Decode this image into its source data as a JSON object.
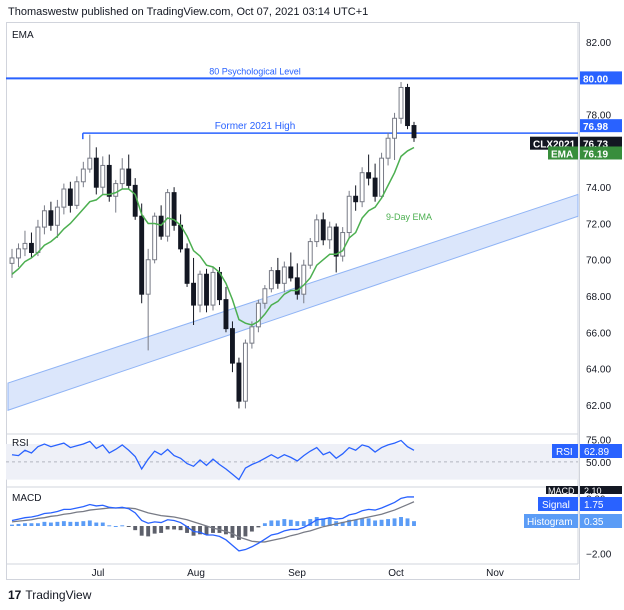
{
  "header": {
    "publisher_line": "Thomaswestw published on TradingView.com, Oct 07, 2021 03:14 UTC+1"
  },
  "footer": {
    "brand": "TradingView",
    "logo_glyph": "17"
  },
  "colors": {
    "up": "#787b86",
    "down": "#131722",
    "ema": "#4caf50",
    "level": "#2962ff",
    "channel_fill": "#dbe6fb",
    "channel_stroke": "#90b4f5",
    "rsi": "#2962ff",
    "macd": "#2962ff",
    "signal": "#787b86",
    "hist_pos": "#5b9cf6",
    "hist_neg": "#5d606b",
    "ticker_bg": "#131722",
    "ema_badge": "#388e3c",
    "level_badge": "#2962ff"
  },
  "chart_data": [
    {
      "type": "candlestick",
      "title": "EMA",
      "symbol": "CLX2021",
      "x_tick_labels": [
        "Jul",
        "Aug",
        "Sep",
        "Oct",
        "Nov"
      ],
      "y_ticks": [
        62.0,
        64.0,
        66.0,
        68.0,
        70.0,
        72.0,
        74.0,
        76.0,
        78.0,
        80.0,
        82.0
      ],
      "ylim": [
        60.5,
        83.0
      ],
      "annotations": [
        {
          "text": "80 Psychological Level",
          "value": 80.0
        },
        {
          "text": "Former 2021 High",
          "value": 76.98
        },
        {
          "text": "9-Day EMA"
        }
      ],
      "price_labels": [
        {
          "text": "80.00",
          "value": 80.0,
          "kind": "level"
        },
        {
          "text": "76.98",
          "value": 76.98,
          "kind": "level"
        },
        {
          "text": "CLX2021",
          "value": 76.73,
          "kind": "ticker"
        },
        {
          "text": "76.73",
          "value": 76.73,
          "kind": "ticker"
        },
        {
          "text": "EMA",
          "value": 76.19,
          "kind": "ema"
        },
        {
          "text": "76.19",
          "value": 76.19,
          "kind": "ema"
        }
      ],
      "channel": {
        "upper_start": 63.2,
        "upper_end": 73.6,
        "lower_start": 61.7,
        "lower_end": 72.4
      },
      "candles": [
        [
          69.8,
          70.6,
          69.0,
          70.1
        ],
        [
          70.1,
          70.9,
          69.6,
          70.6
        ],
        [
          70.6,
          71.6,
          70.2,
          70.9
        ],
        [
          70.9,
          71.5,
          70.1,
          70.4
        ],
        [
          70.4,
          72.2,
          70.2,
          71.8
        ],
        [
          71.8,
          73.0,
          71.4,
          72.7
        ],
        [
          72.7,
          73.2,
          71.6,
          71.9
        ],
        [
          71.9,
          73.3,
          71.2,
          72.9
        ],
        [
          72.9,
          74.2,
          72.5,
          73.9
        ],
        [
          73.9,
          74.3,
          72.6,
          73.0
        ],
        [
          73.0,
          74.6,
          72.8,
          74.3
        ],
        [
          74.3,
          75.4,
          74.0,
          75.0
        ],
        [
          75.0,
          76.9,
          74.8,
          75.6
        ],
        [
          75.6,
          76.2,
          73.6,
          74.0
        ],
        [
          74.0,
          75.7,
          73.6,
          75.2
        ],
        [
          75.2,
          75.8,
          73.2,
          73.5
        ],
        [
          73.5,
          74.4,
          72.6,
          74.2
        ],
        [
          74.2,
          75.6,
          73.9,
          75.0
        ],
        [
          75.0,
          75.8,
          73.9,
          74.1
        ],
        [
          74.1,
          74.5,
          72.2,
          72.4
        ],
        [
          72.4,
          73.1,
          67.6,
          68.1
        ],
        [
          68.1,
          70.6,
          65.0,
          70.0
        ],
        [
          70.0,
          72.6,
          69.8,
          72.4
        ],
        [
          72.4,
          73.0,
          71.1,
          71.3
        ],
        [
          71.3,
          73.9,
          71.0,
          73.7
        ],
        [
          73.7,
          74.0,
          71.6,
          71.9
        ],
        [
          71.9,
          72.5,
          70.4,
          70.6
        ],
        [
          70.6,
          70.9,
          68.5,
          68.7
        ],
        [
          68.7,
          70.1,
          66.4,
          67.5
        ],
        [
          67.5,
          69.4,
          67.1,
          69.2
        ],
        [
          69.2,
          69.5,
          67.1,
          67.5
        ],
        [
          67.5,
          69.6,
          67.2,
          69.3
        ],
        [
          69.3,
          69.6,
          67.5,
          67.8
        ],
        [
          67.8,
          68.5,
          66.0,
          66.2
        ],
        [
          66.2,
          66.6,
          63.8,
          64.3
        ],
        [
          64.3,
          64.6,
          61.8,
          62.2
        ],
        [
          62.2,
          65.6,
          61.8,
          65.4
        ],
        [
          65.4,
          66.6,
          65.1,
          66.3
        ],
        [
          66.3,
          67.8,
          66.0,
          67.6
        ],
        [
          67.6,
          68.6,
          67.3,
          68.4
        ],
        [
          68.4,
          69.6,
          68.2,
          69.4
        ],
        [
          69.4,
          70.1,
          68.4,
          68.7
        ],
        [
          68.7,
          69.9,
          68.2,
          69.6
        ],
        [
          69.6,
          70.4,
          68.8,
          69.0
        ],
        [
          69.0,
          69.8,
          67.8,
          68.1
        ],
        [
          68.1,
          70.0,
          67.6,
          69.7
        ],
        [
          69.7,
          71.2,
          69.5,
          71.0
        ],
        [
          71.0,
          72.5,
          70.7,
          72.2
        ],
        [
          72.2,
          72.6,
          70.8,
          71.1
        ],
        [
          71.1,
          72.1,
          70.6,
          71.8
        ],
        [
          71.8,
          72.0,
          69.3,
          70.2
        ],
        [
          70.2,
          71.8,
          69.9,
          71.5
        ],
        [
          71.5,
          73.8,
          71.2,
          73.5
        ],
        [
          73.5,
          74.1,
          72.7,
          73.2
        ],
        [
          73.2,
          75.1,
          72.9,
          74.8
        ],
        [
          74.8,
          75.8,
          74.1,
          74.5
        ],
        [
          74.5,
          75.3,
          73.2,
          73.5
        ],
        [
          73.5,
          75.9,
          73.4,
          75.6
        ],
        [
          75.6,
          77.0,
          75.2,
          76.7
        ],
        [
          76.7,
          78.1,
          75.5,
          77.8
        ],
        [
          77.8,
          79.8,
          77.5,
          79.5
        ],
        [
          79.5,
          79.7,
          77.2,
          77.4
        ],
        [
          77.4,
          77.6,
          76.5,
          76.73
        ]
      ],
      "ema9": [
        69.2,
        69.5,
        69.9,
        70.1,
        70.4,
        70.8,
        71.0,
        71.3,
        71.7,
        72.0,
        72.4,
        72.8,
        73.2,
        73.3,
        73.6,
        73.6,
        73.7,
        73.9,
        73.9,
        73.6,
        72.5,
        72.0,
        72.0,
        71.9,
        72.3,
        72.2,
        71.9,
        71.3,
        70.5,
        70.2,
        69.7,
        69.6,
        69.3,
        68.7,
        67.8,
        66.7,
        66.5,
        66.4,
        66.6,
        67.0,
        67.5,
        67.7,
        68.1,
        68.3,
        68.3,
        68.6,
        69.0,
        69.7,
        70.0,
        70.3,
        70.3,
        70.5,
        71.2,
        71.5,
        72.3,
        72.7,
        72.9,
        73.4,
        74.1,
        74.8,
        75.7,
        76.0,
        76.19
      ],
      "ema_label_value": 76.19
    },
    {
      "type": "line",
      "title": "RSI",
      "y_ticks": [
        50.0,
        75.0
      ],
      "ylim": [
        24,
        79
      ],
      "band": [
        30,
        70
      ],
      "badge": {
        "label": "RSI",
        "value": "62.89"
      },
      "values": [
        58,
        57,
        63,
        60,
        67,
        70,
        67,
        69,
        71,
        66,
        68,
        70,
        73,
        65,
        69,
        60,
        64,
        69,
        63,
        56,
        42,
        53,
        62,
        58,
        64,
        57,
        54,
        48,
        45,
        52,
        46,
        53,
        47,
        42,
        36,
        30,
        43,
        47,
        50,
        54,
        58,
        54,
        58,
        55,
        51,
        57,
        62,
        66,
        58,
        61,
        54,
        59,
        66,
        63,
        69,
        67,
        61,
        66,
        69,
        71,
        74,
        67,
        62.89
      ]
    },
    {
      "type": "bar+line",
      "title": "MACD",
      "y_ticks": [
        -2.0,
        2.0
      ],
      "ylim": [
        -2.6,
        2.6
      ],
      "badges": [
        {
          "label": "MACD",
          "value": "2.10"
        },
        {
          "label": "Signal",
          "value": "1.75"
        },
        {
          "label": "Histogram",
          "value": "0.35"
        }
      ],
      "macd": [
        0.4,
        0.5,
        0.6,
        0.65,
        0.75,
        0.9,
        0.95,
        1.05,
        1.2,
        1.2,
        1.3,
        1.4,
        1.55,
        1.45,
        1.5,
        1.35,
        1.3,
        1.35,
        1.25,
        0.95,
        0.4,
        0.2,
        0.3,
        0.25,
        0.45,
        0.4,
        0.25,
        -0.05,
        -0.4,
        -0.45,
        -0.65,
        -0.65,
        -0.75,
        -1.0,
        -1.4,
        -1.8,
        -1.7,
        -1.5,
        -1.25,
        -0.95,
        -0.65,
        -0.55,
        -0.35,
        -0.25,
        -0.25,
        -0.1,
        0.15,
        0.45,
        0.5,
        0.6,
        0.5,
        0.55,
        0.8,
        0.9,
        1.1,
        1.2,
        1.15,
        1.3,
        1.5,
        1.7,
        2.0,
        2.1,
        2.1
      ],
      "signal": [
        0.3,
        0.35,
        0.4,
        0.45,
        0.55,
        0.6,
        0.7,
        0.75,
        0.85,
        0.9,
        1.0,
        1.05,
        1.15,
        1.2,
        1.25,
        1.3,
        1.3,
        1.3,
        1.3,
        1.25,
        1.1,
        0.95,
        0.85,
        0.75,
        0.7,
        0.65,
        0.55,
        0.45,
        0.3,
        0.15,
        0.0,
        -0.15,
        -0.25,
        -0.4,
        -0.55,
        -0.8,
        -0.95,
        -1.1,
        -1.15,
        -1.15,
        -1.05,
        -0.95,
        -0.85,
        -0.7,
        -0.6,
        -0.45,
        -0.35,
        -0.2,
        -0.05,
        0.05,
        0.15,
        0.25,
        0.35,
        0.45,
        0.55,
        0.65,
        0.75,
        0.85,
        1.0,
        1.15,
        1.35,
        1.55,
        1.75
      ]
    }
  ]
}
